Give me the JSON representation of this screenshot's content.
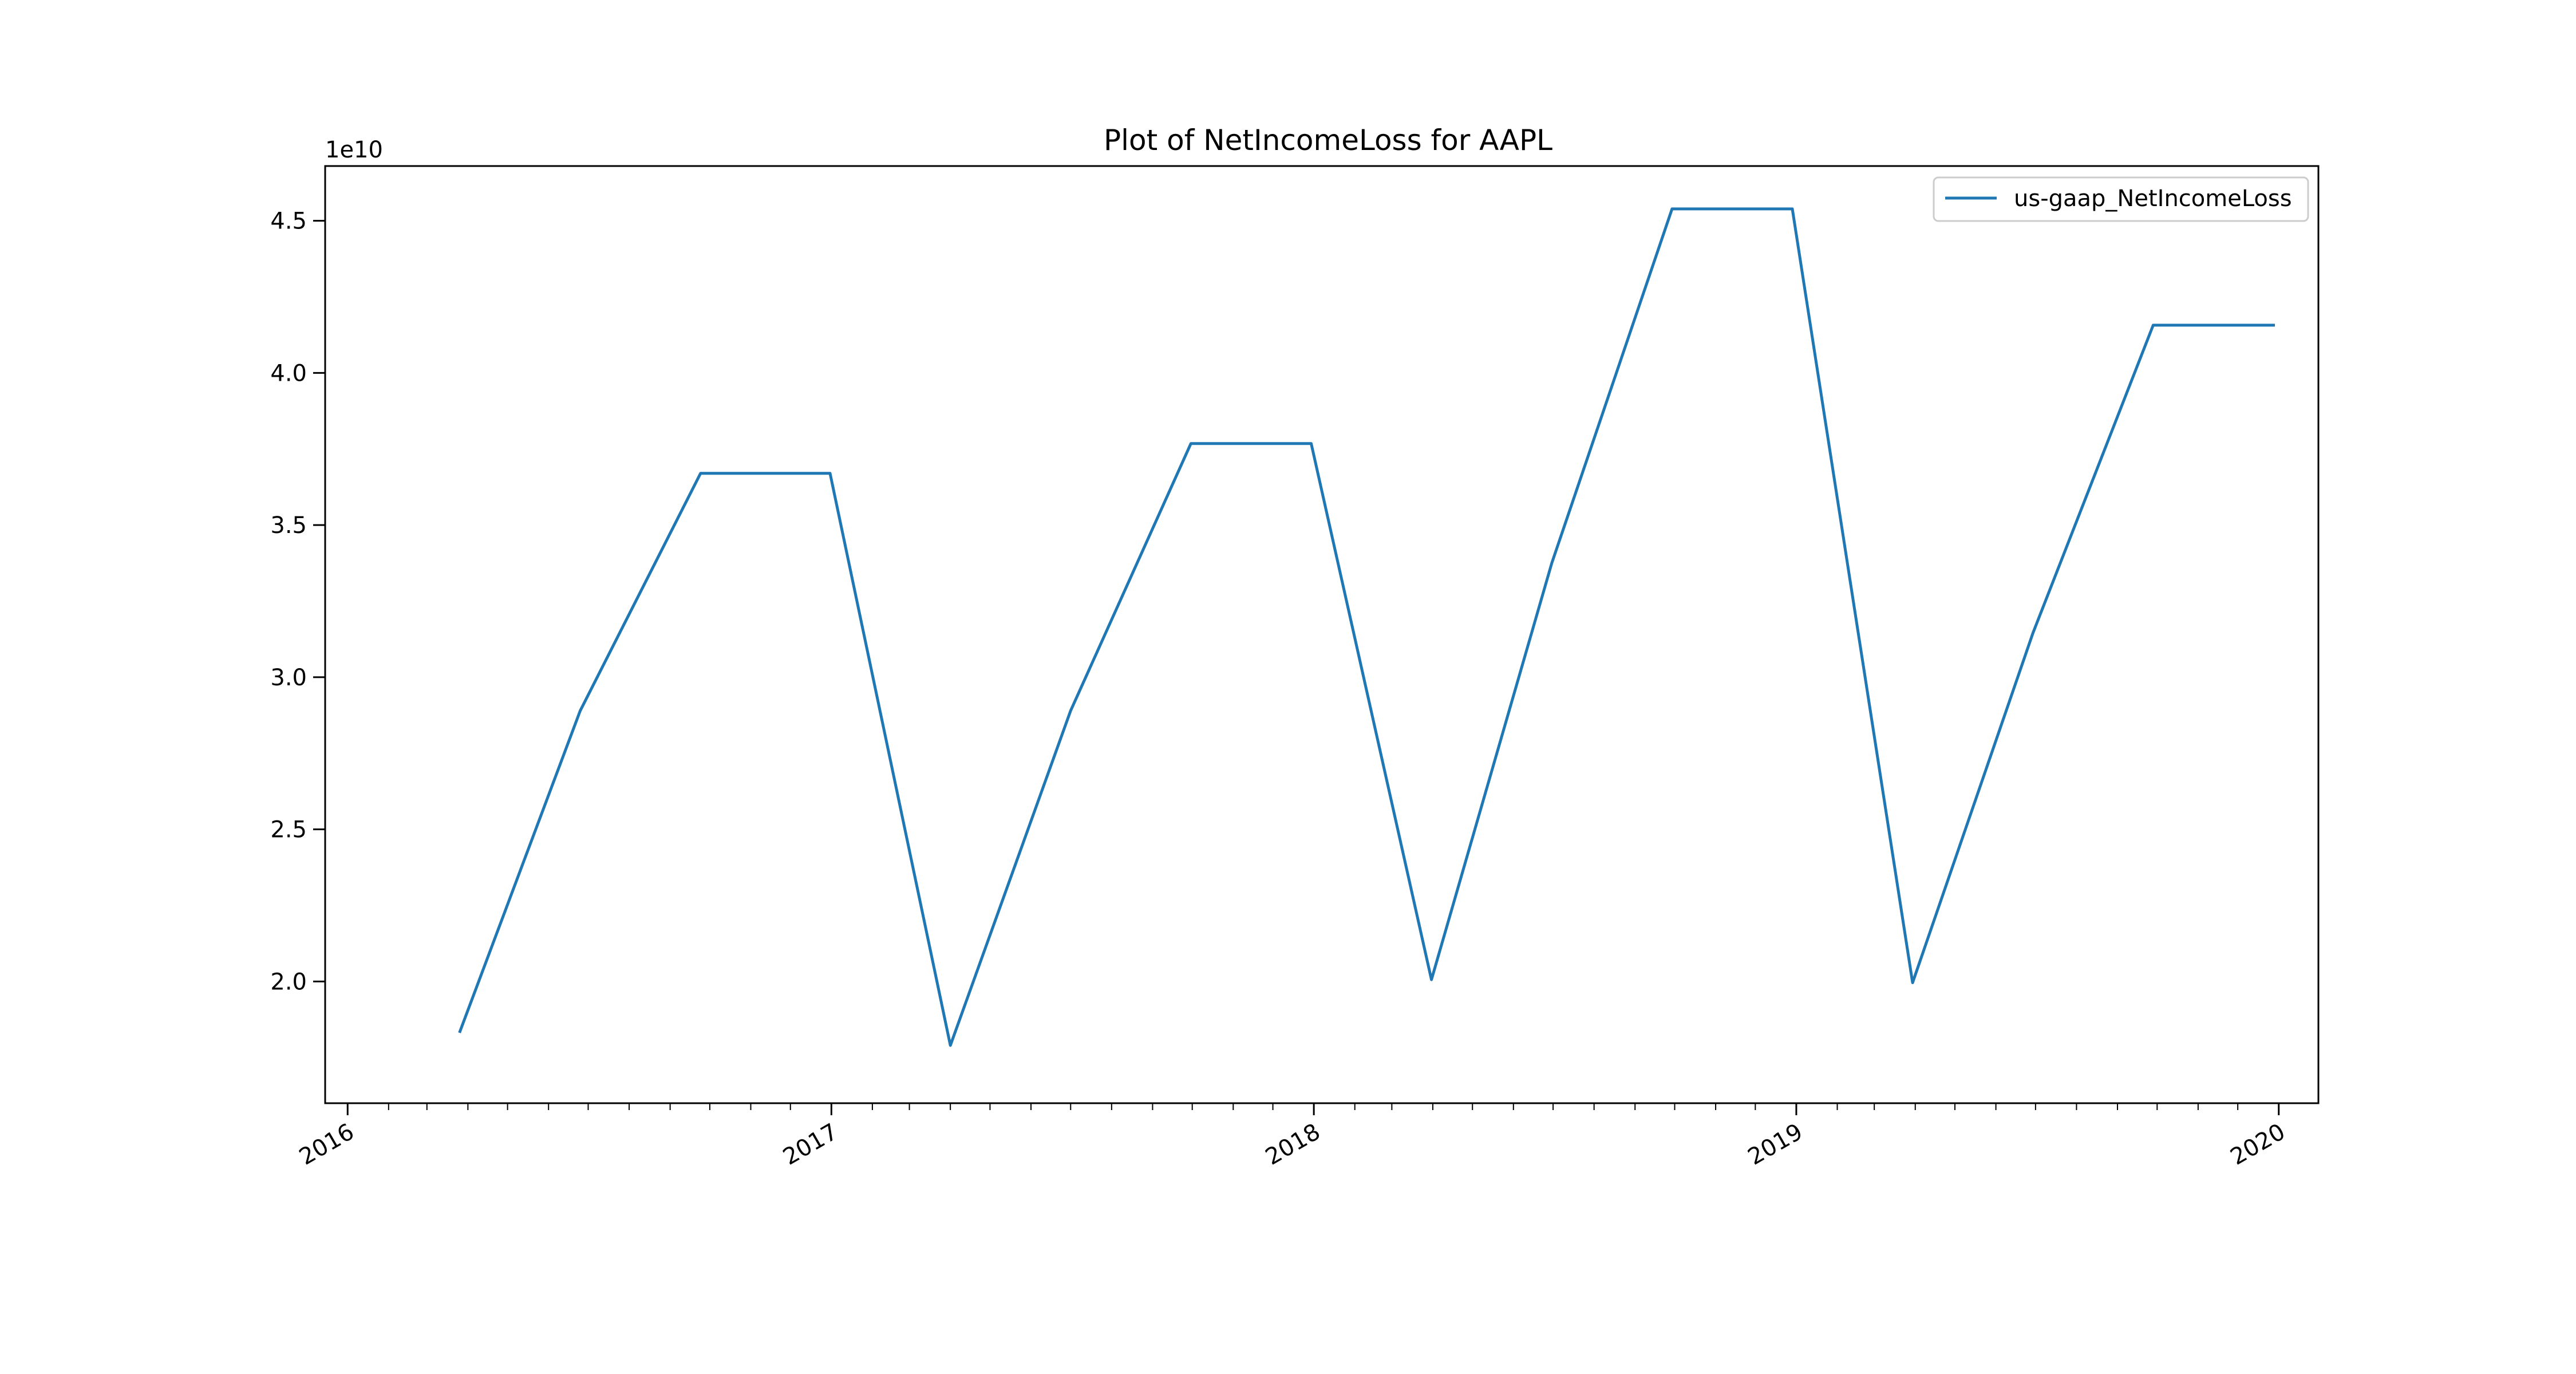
{
  "chart_data": {
    "type": "line",
    "title": "Plot of NetIncomeLoss for AAPL",
    "xlabel": "",
    "ylabel": "",
    "y_offset_label": "1e10",
    "y_scale": 10000000000,
    "xlim": [
      "2015-12-15",
      "2020-01-31"
    ],
    "ylim": [
      16000000000,
      46800000000
    ],
    "x_ticks": [
      {
        "date": "2016-01-01",
        "label": "2016"
      },
      {
        "date": "2017-01-01",
        "label": "2017"
      },
      {
        "date": "2018-01-01",
        "label": "2018"
      },
      {
        "date": "2019-01-01",
        "label": "2019"
      },
      {
        "date": "2020-01-01",
        "label": "2020"
      }
    ],
    "y_ticks": [
      {
        "value": 20000000000,
        "label": "2.0"
      },
      {
        "value": 25000000000,
        "label": "2.5"
      },
      {
        "value": 30000000000,
        "label": "3.0"
      },
      {
        "value": 35000000000,
        "label": "3.5"
      },
      {
        "value": 40000000000,
        "label": "4.0"
      },
      {
        "value": 45000000000,
        "label": "4.5"
      }
    ],
    "grid": false,
    "legend_position": "top-right",
    "series": [
      {
        "name": "us-gaap_NetIncomeLoss",
        "color": "#1f77b4",
        "x": [
          "2016-03-26",
          "2016-06-25",
          "2016-09-24",
          "2016-12-31",
          "2017-04-01",
          "2017-07-01",
          "2017-09-30",
          "2017-12-30",
          "2018-03-31",
          "2018-06-30",
          "2018-09-29",
          "2018-12-29",
          "2019-03-30",
          "2019-06-29",
          "2019-09-28",
          "2019-12-28"
        ],
        "values": [
          18360000000,
          28900000000,
          36700000000,
          36700000000,
          17900000000,
          28900000000,
          37680000000,
          37680000000,
          20060000000,
          33750000000,
          45390000000,
          45390000000,
          19960000000,
          31450000000,
          41570000000,
          41570000000
        ]
      }
    ]
  }
}
